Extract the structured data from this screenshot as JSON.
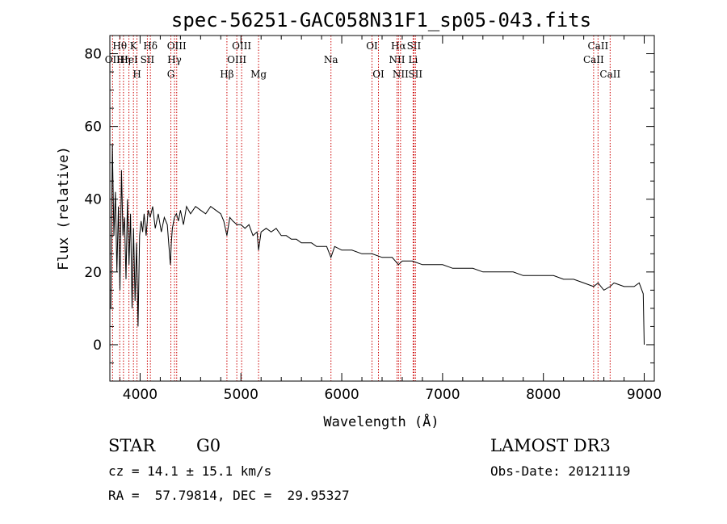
{
  "chart_data": {
    "type": "line",
    "title": "spec-56251-GAC058N31F1_sp05-043.fits",
    "xlabel": "Wavelength (Å)",
    "ylabel": "Flux (relative)",
    "xlim": [
      3700,
      9100
    ],
    "ylim": [
      -10,
      85
    ],
    "x_major_ticks": [
      4000,
      5000,
      6000,
      7000,
      8000,
      9000
    ],
    "x_minor_step": 200,
    "y_major_ticks": [
      0,
      20,
      40,
      60,
      80
    ],
    "y_minor_step": 5,
    "grid": false,
    "line_color": "#000000",
    "marker_color": "#cc0000",
    "spectrum": {
      "x": [
        3710,
        3725,
        3740,
        3755,
        3770,
        3785,
        3800,
        3815,
        3830,
        3845,
        3860,
        3875,
        3890,
        3905,
        3920,
        3935,
        3950,
        3965,
        3980,
        3995,
        4010,
        4025,
        4040,
        4060,
        4080,
        4100,
        4125,
        4150,
        4180,
        4210,
        4240,
        4270,
        4300,
        4310,
        4320,
        4340,
        4360,
        4380,
        4400,
        4430,
        4460,
        4500,
        4550,
        4600,
        4650,
        4700,
        4750,
        4800,
        4830,
        4861,
        4890,
        4920,
        4960,
        5000,
        5040,
        5080,
        5120,
        5160,
        5175,
        5200,
        5250,
        5300,
        5350,
        5400,
        5450,
        5500,
        5550,
        5600,
        5650,
        5700,
        5750,
        5800,
        5850,
        5893,
        5930,
        6000,
        6100,
        6200,
        6300,
        6400,
        6500,
        6563,
        6600,
        6700,
        6800,
        6900,
        7000,
        7100,
        7200,
        7300,
        7400,
        7500,
        7600,
        7700,
        7800,
        7900,
        8000,
        8100,
        8200,
        8300,
        8400,
        8498,
        8542,
        8600,
        8662,
        8700,
        8800,
        8900,
        8950,
        8990,
        9000
      ],
      "y": [
        10,
        55,
        30,
        42,
        20,
        38,
        15,
        48,
        30,
        35,
        18,
        40,
        22,
        36,
        10,
        32,
        12,
        28,
        5,
        30,
        34,
        31,
        36,
        30,
        37,
        35,
        38,
        32,
        36,
        31,
        35,
        33,
        22,
        28,
        32,
        35,
        36,
        34,
        37,
        33,
        38,
        36,
        38,
        37,
        36,
        38,
        37,
        36,
        34,
        30,
        35,
        34,
        33,
        33,
        32,
        33,
        30,
        31,
        26,
        31,
        32,
        31,
        32,
        30,
        30,
        29,
        29,
        28,
        28,
        28,
        27,
        27,
        27,
        24,
        27,
        26,
        26,
        25,
        25,
        24,
        24,
        22,
        23,
        23,
        22,
        22,
        22,
        21,
        21,
        21,
        20,
        20,
        20,
        20,
        19,
        19,
        19,
        19,
        18,
        18,
        17,
        16,
        17,
        15,
        16,
        17,
        16,
        16,
        17,
        14,
        0
      ]
    },
    "spectral_lines": [
      {
        "label": "OII",
        "wavelength": 3727,
        "row": 1
      },
      {
        "label": "Hθ",
        "wavelength": 3798,
        "row": 0
      },
      {
        "label": "Hη",
        "wavelength": 3835,
        "row": 1
      },
      {
        "label": "HeI",
        "wavelength": 3889,
        "row": 1
      },
      {
        "label": "K",
        "wavelength": 3934,
        "row": 0
      },
      {
        "label": "SII",
        "wavelength": 4072,
        "row": 1
      },
      {
        "label": "H",
        "wavelength": 3969,
        "row": 2
      },
      {
        "label": "Hδ",
        "wavelength": 4102,
        "row": 0
      },
      {
        "label": "OIII",
        "wavelength": 4363,
        "row": 0
      },
      {
        "label": "Hγ",
        "wavelength": 4341,
        "row": 1
      },
      {
        "label": "G",
        "wavelength": 4305,
        "row": 2
      },
      {
        "label": "OIII",
        "wavelength": 5007,
        "row": 0
      },
      {
        "label": "OIII",
        "wavelength": 4959,
        "row": 1
      },
      {
        "label": "Hβ",
        "wavelength": 4861,
        "row": 2
      },
      {
        "label": "Mg",
        "wavelength": 5175,
        "row": 2
      },
      {
        "label": "Na",
        "wavelength": 5893,
        "row": 1
      },
      {
        "label": "OI",
        "wavelength": 6300,
        "row": 0
      },
      {
        "label": "OI",
        "wavelength": 6364,
        "row": 2
      },
      {
        "label": "Hα",
        "wavelength": 6563,
        "row": 0
      },
      {
        "label": "SII",
        "wavelength": 6716,
        "row": 0
      },
      {
        "label": "NII",
        "wavelength": 6548,
        "row": 1
      },
      {
        "label": "Li",
        "wavelength": 6708,
        "row": 1
      },
      {
        "label": "NII",
        "wavelength": 6583,
        "row": 2
      },
      {
        "label": "SII",
        "wavelength": 6731,
        "row": 2
      },
      {
        "label": "CaII",
        "wavelength": 8542,
        "row": 0
      },
      {
        "label": "CaII",
        "wavelength": 8498,
        "row": 1
      },
      {
        "label": "CaII",
        "wavelength": 8662,
        "row": 2
      }
    ]
  },
  "info": {
    "object_class": "STAR",
    "subclass": "G0",
    "survey": "LAMOST DR3",
    "redshift": "cz = 14.1 ± 15.1 km/s",
    "obs_date": "Obs-Date: 20121119",
    "coords": "RA =  57.79814, DEC =  29.95327"
  }
}
